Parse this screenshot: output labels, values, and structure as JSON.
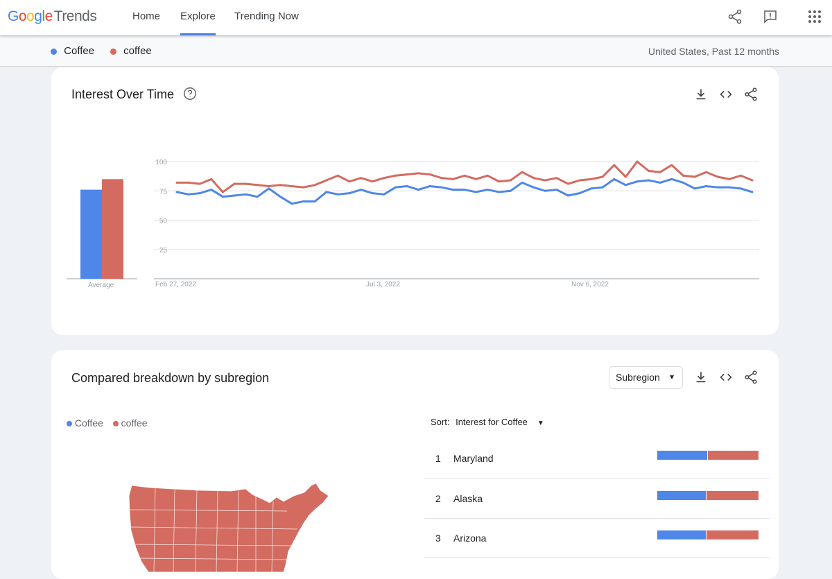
{
  "header": {
    "logo": {
      "google": "Google",
      "trends": "Trends"
    },
    "nav": [
      {
        "label": "Home"
      },
      {
        "label": "Explore",
        "active": true
      },
      {
        "label": "Trending Now"
      }
    ],
    "icons": [
      "share-icon",
      "feedback-icon",
      "apps-icon"
    ]
  },
  "terms": [
    {
      "label": "Coffee",
      "color": "#4f87e8"
    },
    {
      "label": "coffee",
      "color": "#d36b60"
    }
  ],
  "filters": {
    "text": "United States, Past 12 months"
  },
  "interest_over_time": {
    "title": "Interest Over Time",
    "average_label": "Average"
  },
  "chart_data": {
    "type": "line",
    "title": "",
    "xlabel": "",
    "ylabel": "",
    "ylim": [
      0,
      100
    ],
    "grid": true,
    "yticks": [
      25,
      50,
      75,
      100
    ],
    "xtick_labels": [
      "Feb 27, 2022",
      "Jul 3, 2022",
      "Nov 6, 2022"
    ],
    "x": [
      "2022-02-27",
      "2022-03-06",
      "2022-03-13",
      "2022-03-20",
      "2022-03-27",
      "2022-04-03",
      "2022-04-10",
      "2022-04-17",
      "2022-04-24",
      "2022-05-01",
      "2022-05-08",
      "2022-05-15",
      "2022-05-22",
      "2022-05-29",
      "2022-06-05",
      "2022-06-12",
      "2022-06-19",
      "2022-06-26",
      "2022-07-03",
      "2022-07-10",
      "2022-07-17",
      "2022-07-24",
      "2022-07-31",
      "2022-08-07",
      "2022-08-14",
      "2022-08-21",
      "2022-08-28",
      "2022-09-04",
      "2022-09-11",
      "2022-09-18",
      "2022-09-25",
      "2022-10-02",
      "2022-10-09",
      "2022-10-16",
      "2022-10-23",
      "2022-10-30",
      "2022-11-06",
      "2022-11-13",
      "2022-11-20",
      "2022-11-27",
      "2022-12-04",
      "2022-12-11",
      "2022-12-18",
      "2022-12-25",
      "2023-01-01",
      "2023-01-08",
      "2023-01-15",
      "2023-01-22",
      "2023-01-29",
      "2023-02-05",
      "2023-02-12"
    ],
    "series": [
      {
        "name": "Coffee",
        "color": "#4f87e8",
        "average": 76,
        "values": [
          74,
          72,
          73,
          76,
          70,
          71,
          72,
          70,
          77,
          70,
          64,
          66,
          66,
          74,
          72,
          73,
          76,
          73,
          72,
          78,
          79,
          76,
          79,
          78,
          76,
          76,
          74,
          76,
          74,
          75,
          82,
          78,
          75,
          76,
          71,
          73,
          77,
          78,
          85,
          80,
          83,
          84,
          82,
          85,
          82,
          77,
          79,
          78,
          78,
          77,
          74
        ]
      },
      {
        "name": "coffee",
        "color": "#d36b60",
        "average": 85,
        "values": [
          82,
          82,
          81,
          85,
          74,
          81,
          81,
          80,
          79,
          80,
          79,
          78,
          80,
          84,
          88,
          83,
          86,
          83,
          86,
          88,
          89,
          90,
          89,
          86,
          85,
          88,
          85,
          88,
          83,
          84,
          91,
          86,
          84,
          86,
          81,
          84,
          85,
          87,
          97,
          87,
          100,
          92,
          91,
          97,
          88,
          87,
          91,
          87,
          85,
          88,
          84
        ]
      }
    ]
  },
  "breakdown": {
    "title": "Compared breakdown by subregion",
    "select": "Subregion",
    "sort_label": "Sort:",
    "sort_value": "Interest for Coffee",
    "rows": [
      {
        "rank": "1",
        "name": "Maryland",
        "share_coffee_upper": 49
      },
      {
        "rank": "2",
        "name": "Alaska",
        "share_coffee_upper": 48
      },
      {
        "rank": "3",
        "name": "Arizona",
        "share_coffee_upper": 48
      }
    ]
  }
}
